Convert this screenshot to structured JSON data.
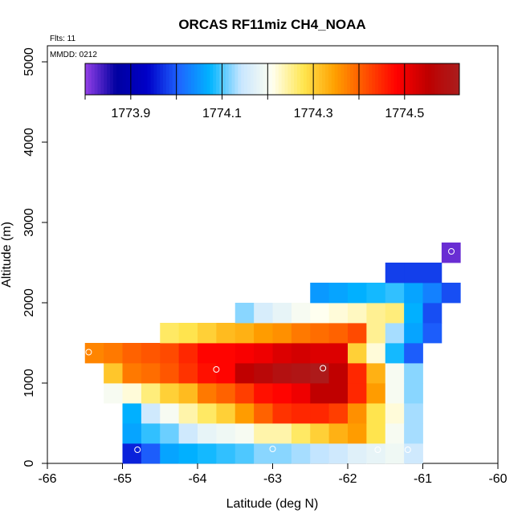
{
  "chart_data": {
    "type": "heatmap",
    "title": "ORCAS RF11miz CH4_NOAA",
    "flts_label": "Flts: 11",
    "mmdd_label": "MMDD: 0212",
    "xlabel": "Latitude (deg N)",
    "ylabel": "Altitude (m)",
    "xlim": [
      -66,
      -60
    ],
    "ylim": [
      0,
      5200
    ],
    "x_ticks": [
      -66,
      -65,
      -64,
      -63,
      -62,
      -61,
      -60
    ],
    "y_ticks": [
      0,
      1000,
      2000,
      3000,
      4000,
      5000
    ],
    "x_tick_labels": [
      "-66",
      "-65",
      "-64",
      "-63",
      "-62",
      "-61",
      "-60"
    ],
    "y_tick_labels": [
      "0",
      "1000",
      "2000",
      "3000",
      "4000",
      "5000"
    ],
    "cell_width_deg": 0.25,
    "cell_height_m": 250,
    "colorbar": {
      "vmin": 1773.8,
      "vmax": 1774.62,
      "tick_values": [
        1773.9,
        1774.1,
        1774.3,
        1774.5
      ],
      "tick_labels": [
        "1773.9",
        "1774.1",
        "1774.3",
        "1774.5"
      ],
      "colors": [
        "#9440e8",
        "#0000a0",
        "#0000c8",
        "#1e64ff",
        "#00b4ff",
        "#c8e6ff",
        "#fffff0",
        "#ffe650",
        "#ffa000",
        "#ff5000",
        "#ff0000",
        "#be0000",
        "#aa1e1e"
      ]
    },
    "rows": [
      {
        "y": 125,
        "x0": -65.0,
        "values": [
          1773.96,
          1774.0,
          1774.06,
          1774.07,
          1774.08,
          1774.09,
          1774.1,
          1774.12,
          1774.12,
          1774.13,
          1774.14,
          1774.15,
          1774.17,
          1774.18,
          1774.19,
          1774.15
        ]
      },
      {
        "y": 375,
        "x0": -65.0,
        "values": [
          1774.06,
          1774.09,
          1774.11,
          1774.15,
          1774.18,
          1774.19,
          1774.2,
          1774.24,
          1774.24,
          1774.27,
          1774.3,
          1774.33,
          1774.35,
          1774.28,
          1774.2,
          1774.13
        ]
      },
      {
        "y": 625,
        "x0": -65.0,
        "values": [
          1774.07,
          1774.15,
          1774.2,
          1774.24,
          1774.27,
          1774.3,
          1774.35,
          1774.4,
          1774.44,
          1774.45,
          1774.45,
          1774.43,
          1774.36,
          1774.28,
          1774.22,
          1774.13
        ]
      },
      {
        "y": 875,
        "x0": -65.25,
        "values": [
          1774.2,
          1774.22,
          1774.26,
          1774.3,
          1774.32,
          1774.38,
          1774.4,
          1774.43,
          1774.47,
          1774.48,
          1774.5,
          1774.55,
          1774.55,
          1774.45,
          1774.35,
          1774.2,
          1774.12
        ]
      },
      {
        "y": 1125,
        "x0": -65.25,
        "values": [
          1774.31,
          1774.38,
          1774.39,
          1774.41,
          1774.44,
          1774.47,
          1774.48,
          1774.55,
          1774.57,
          1774.59,
          1774.6,
          1774.61,
          1774.55,
          1774.45,
          1774.33,
          1774.2,
          1774.12
        ]
      },
      {
        "y": 1375,
        "x0": -65.5,
        "values": [
          1774.37,
          1774.38,
          1774.4,
          1774.41,
          1774.42,
          1774.45,
          1774.48,
          1774.48,
          1774.49,
          1774.5,
          1774.52,
          1774.53,
          1774.52,
          1774.52,
          1774.3,
          1774.22,
          1774.08,
          1774.0
        ]
      },
      {
        "y": 1625,
        "x0": -64.5,
        "values": [
          1774.27,
          1774.28,
          1774.3,
          1774.32,
          1774.33,
          1774.35,
          1774.36,
          1774.38,
          1774.39,
          1774.4,
          1774.42,
          1774.25,
          1774.13,
          1774.06,
          1774.0
        ]
      },
      {
        "y": 1875,
        "x0": -63.5,
        "values": [
          1774.12,
          1774.16,
          1774.18,
          1774.2,
          1774.21,
          1774.22,
          1774.23,
          1774.25,
          1774.26,
          1774.07,
          1773.99
        ]
      },
      {
        "y": 2125,
        "x0": -62.5,
        "values": [
          1774.05,
          1774.06,
          1774.07,
          1774.08,
          1774.09,
          1774.06,
          1774.03,
          1773.99
        ]
      },
      {
        "y": 2375,
        "x0": -61.5,
        "values": [
          1773.98,
          1773.98,
          1773.98
        ]
      },
      {
        "y": 2625,
        "x0": -60.75,
        "values": [
          1773.82
        ]
      }
    ],
    "circles": [
      {
        "x": -64.8,
        "y": 170
      },
      {
        "x": -63.0,
        "y": 180
      },
      {
        "x": -61.6,
        "y": 170
      },
      {
        "x": -61.2,
        "y": 170
      },
      {
        "x": -63.75,
        "y": 1170
      },
      {
        "x": -62.33,
        "y": 1185
      },
      {
        "x": -65.45,
        "y": 1385
      },
      {
        "x": -60.62,
        "y": 2640
      }
    ]
  }
}
